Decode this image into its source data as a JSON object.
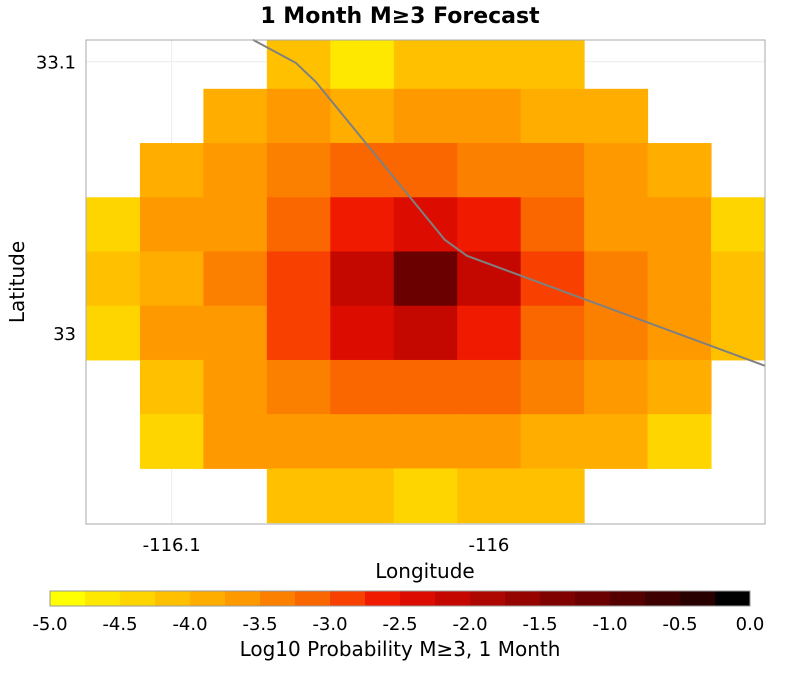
{
  "chart_data": {
    "type": "heatmap",
    "title": "1 Month M≥3 Forecast",
    "xlabel": "Longitude",
    "ylabel": "Latitude",
    "xlim": [
      -116.127,
      -115.913
    ],
    "ylim": [
      32.9295,
      33.108
    ],
    "xticks": [
      {
        "value": -116.1,
        "label": "-116.1"
      },
      {
        "value": -116.0,
        "label": "-116"
      }
    ],
    "yticks": [
      {
        "value": 33.1,
        "label": "33.1"
      },
      {
        "value": 33.0,
        "label": "33"
      }
    ],
    "grid": true,
    "cell_size_deg": 0.02,
    "lons": [
      -116.12,
      -116.1,
      -116.08,
      -116.06,
      -116.04,
      -116.02,
      -116.0,
      -115.98,
      -115.96,
      -115.94,
      -115.92
    ],
    "lats": [
      33.1,
      33.08,
      33.06,
      33.04,
      33.02,
      33.0,
      32.98,
      32.96,
      32.94
    ],
    "values": [
      [
        null,
        null,
        null,
        -4.125,
        -4.625,
        -4.125,
        -4.125,
        -4.125,
        null,
        null,
        null
      ],
      [
        null,
        null,
        -3.875,
        -3.625,
        -3.875,
        -3.625,
        -3.625,
        -3.875,
        -3.875,
        null,
        null
      ],
      [
        null,
        -3.875,
        -3.625,
        -3.375,
        -3.125,
        -3.125,
        -3.375,
        -3.375,
        -3.625,
        -3.875,
        null
      ],
      [
        -4.375,
        -3.625,
        -3.625,
        -3.125,
        -2.625,
        -2.375,
        -2.625,
        -3.125,
        -3.625,
        -3.625,
        -4.375
      ],
      [
        -4.125,
        -3.875,
        -3.375,
        -2.875,
        -2.125,
        -1.125,
        -2.125,
        -2.875,
        -3.375,
        -3.625,
        -4.125
      ],
      [
        -4.375,
        -3.625,
        -3.625,
        -2.875,
        -2.375,
        -2.125,
        -2.625,
        -3.125,
        -3.375,
        -3.625,
        -4.125
      ],
      [
        null,
        -4.125,
        -3.625,
        -3.375,
        -3.125,
        -3.125,
        -3.125,
        -3.375,
        -3.625,
        -3.875,
        null
      ],
      [
        null,
        -4.375,
        -3.625,
        -3.625,
        -3.625,
        -3.625,
        -3.625,
        -3.875,
        -3.875,
        -4.375,
        null
      ],
      [
        null,
        null,
        null,
        -4.125,
        -4.125,
        -4.375,
        -4.125,
        -4.125,
        null,
        null,
        null
      ]
    ],
    "fault_trace": {
      "color": "#808080",
      "points": [
        [
          -116.0744,
          33.1081
        ],
        [
          -116.0609,
          33.0996
        ],
        [
          -116.0546,
          33.0926
        ],
        [
          -116.0139,
          33.0343
        ],
        [
          -116.0069,
          33.0284
        ],
        [
          -115.9129,
          32.9878
        ]
      ]
    },
    "colorbar": {
      "label": "Log10 Probability M≥3, 1 Month",
      "range": [
        -5.0,
        0.0
      ],
      "bin_width": 0.25,
      "placement": "bottom",
      "ticks": [
        "-5.0",
        "-4.5",
        "-4.0",
        "-3.5",
        "-3.0",
        "-2.5",
        "-2.0",
        "-1.5",
        "-1.0",
        "-0.5",
        "0.0"
      ],
      "colors": [
        "#ffff00",
        "#ffe800",
        "#ffd500",
        "#ffc000",
        "#ffae00",
        "#ff9900",
        "#fc8000",
        "#fa6600",
        "#f84000",
        "#f01a00",
        "#dc0c00",
        "#c40800",
        "#ae0600",
        "#960400",
        "#800200",
        "#6a0000",
        "#540000",
        "#3e0000",
        "#280000",
        "#000000"
      ]
    }
  }
}
